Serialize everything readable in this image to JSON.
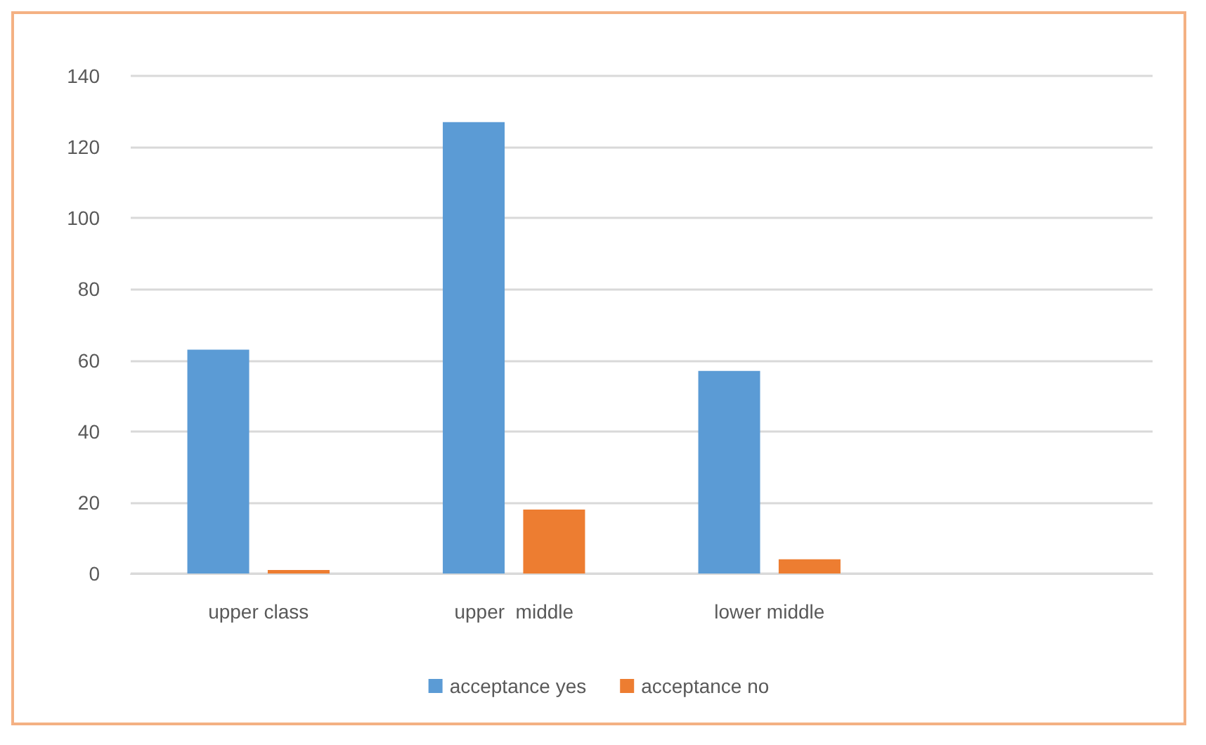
{
  "chart_data": {
    "type": "bar",
    "categories": [
      "upper class",
      "upper  middle",
      "lower middle",
      null
    ],
    "series": [
      {
        "name": "acceptance yes",
        "color": "#5b9bd5",
        "values": [
          63,
          127,
          57,
          null
        ]
      },
      {
        "name": "acceptance no",
        "color": "#ed7d31",
        "values": [
          1,
          18,
          4,
          null
        ]
      }
    ],
    "ylim": [
      0,
      140
    ],
    "yticks": [
      0,
      20,
      40,
      60,
      80,
      100,
      120,
      140
    ],
    "grid": "y",
    "legend": "bottom"
  }
}
